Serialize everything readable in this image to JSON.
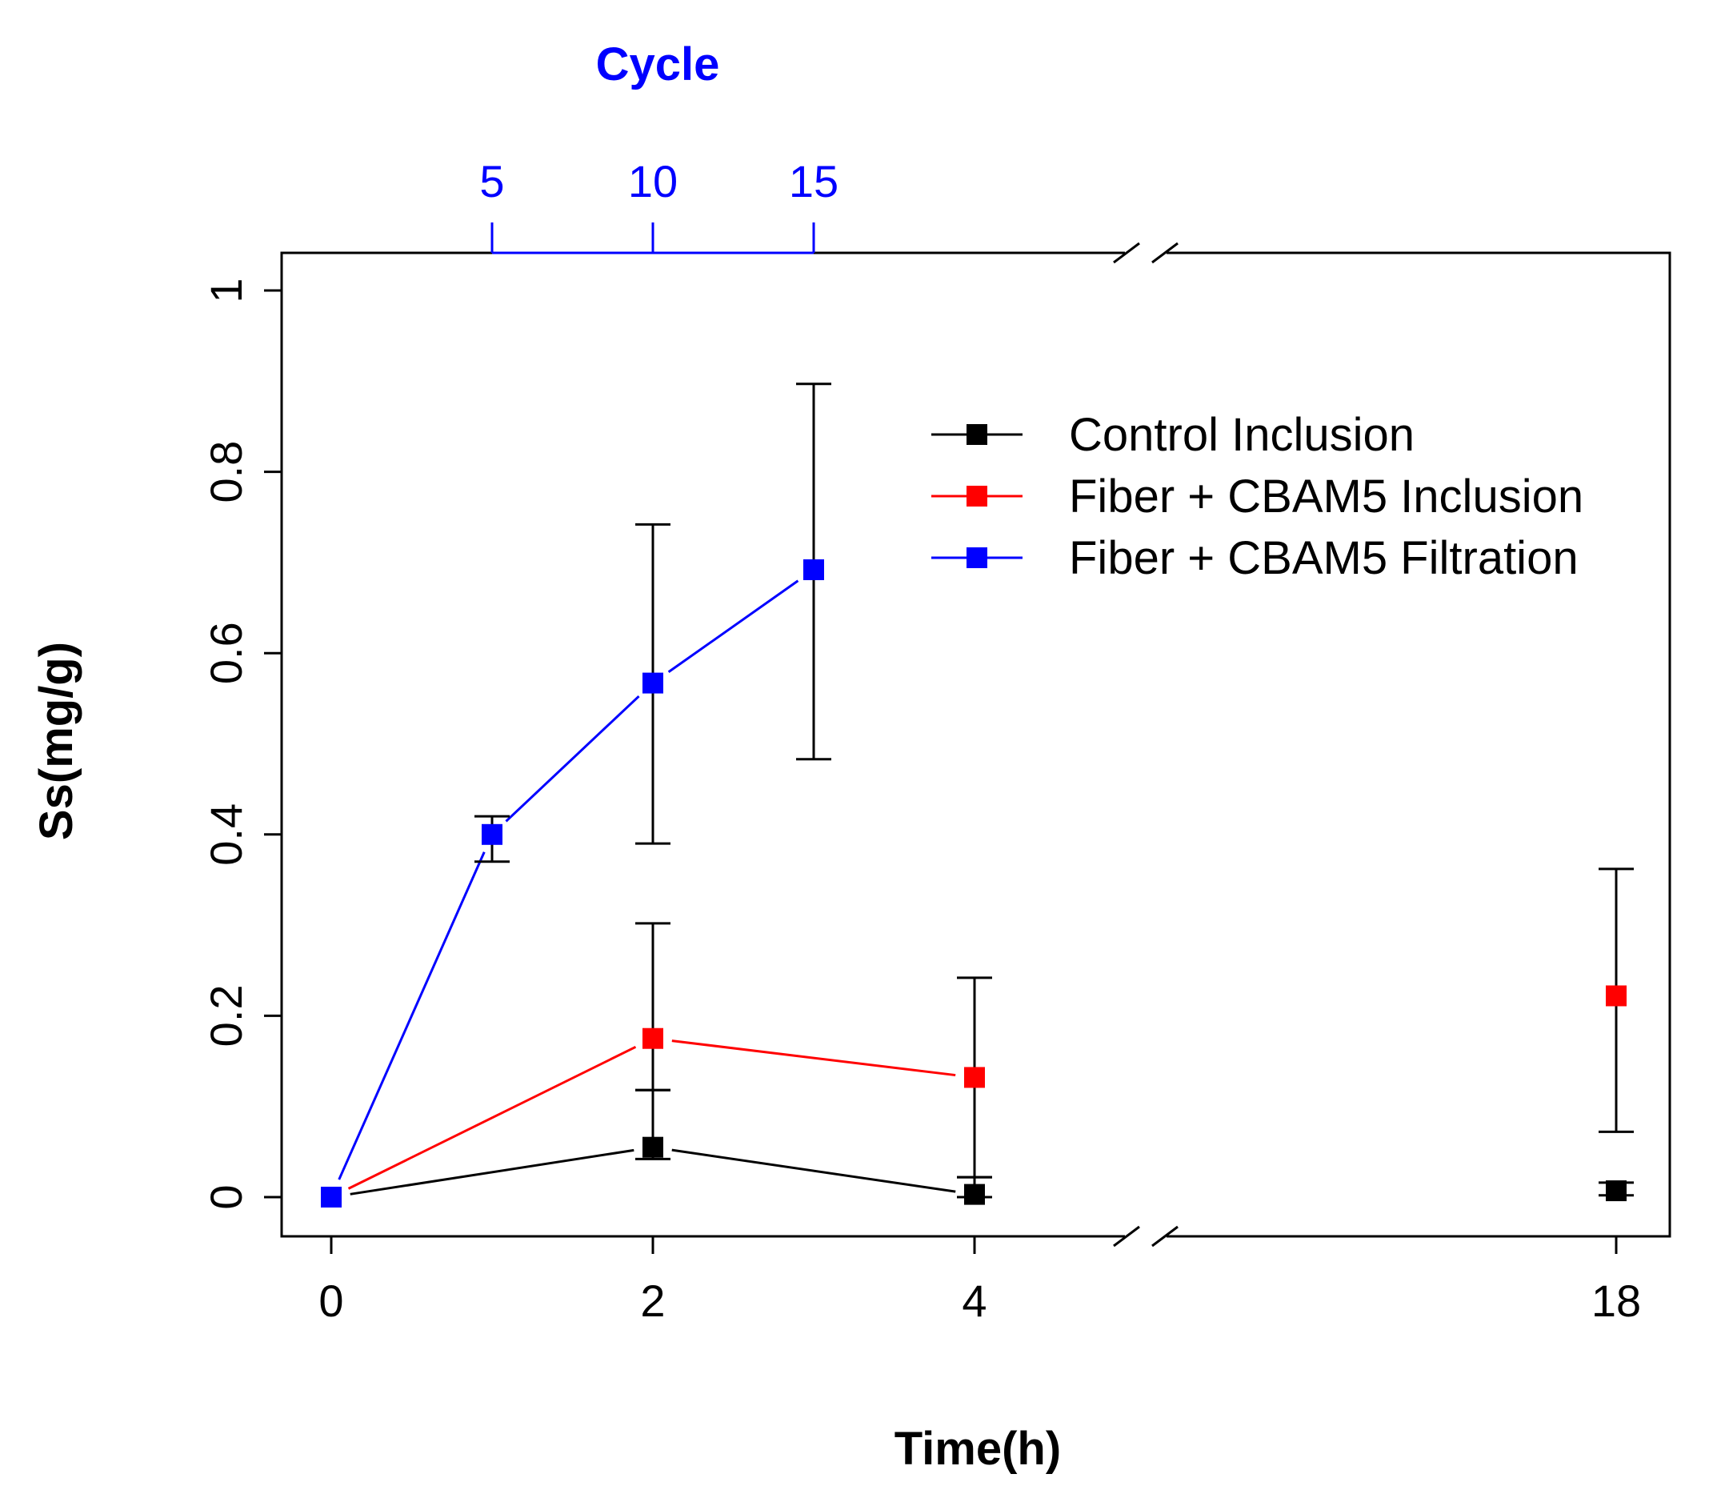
{
  "chart_data": {
    "type": "line",
    "title": "",
    "xlabel": "Time(h)",
    "ylabel": "Ss(mg/g)",
    "x_ticks": [
      0,
      2,
      4,
      18
    ],
    "x_ticks_text": [
      "0",
      "2",
      "4",
      "18"
    ],
    "y_ticks": [
      0,
      0.2,
      0.4,
      0.6,
      0.8,
      1
    ],
    "y_ticks_text": [
      "0",
      "0.2",
      "0.4",
      "0.6",
      "0.8",
      "1"
    ],
    "ylim": [
      -0.04,
      1.04
    ],
    "axis_break": "between 4 and 18",
    "top_axis": {
      "label": "Cycle",
      "color": "#0000ff",
      "ticks": [
        5,
        10,
        15
      ],
      "ticks_text": [
        "5",
        "10",
        "15"
      ],
      "time_at_tick": [
        1,
        2,
        3
      ]
    },
    "legend_position": "top-right",
    "series": [
      {
        "name": "Control Inclusion",
        "color": "#000000",
        "points": [
          {
            "x": 0,
            "y": 0,
            "lo": 0,
            "hi": 0
          },
          {
            "x": 2,
            "y": 0.055,
            "lo": 0.042,
            "hi": 0.118
          },
          {
            "x": 4,
            "y": 0.003,
            "lo": 0.0,
            "hi": 0.022
          },
          {
            "x": 18,
            "y": 0.007,
            "lo": 0.002,
            "hi": 0.016
          }
        ],
        "connected_until_x": 4
      },
      {
        "name": "Fiber + CBAM5 Inclusion",
        "color": "#ff0000",
        "points": [
          {
            "x": 0,
            "y": 0,
            "lo": 0,
            "hi": 0
          },
          {
            "x": 2,
            "y": 0.175,
            "lo": 0.118,
            "hi": 0.302
          },
          {
            "x": 4,
            "y": 0.132,
            "lo": 0.022,
            "hi": 0.242
          },
          {
            "x": 18,
            "y": 0.222,
            "lo": 0.072,
            "hi": 0.362
          }
        ],
        "connected_until_x": 4
      },
      {
        "name": "Fiber + CBAM5 Filtration",
        "color": "#0000ff",
        "points": [
          {
            "x": 0,
            "y": 0,
            "lo": 0,
            "hi": 0
          },
          {
            "x": 1,
            "y": 0.4,
            "lo": 0.37,
            "hi": 0.42
          },
          {
            "x": 2,
            "y": 0.567,
            "lo": 0.39,
            "hi": 0.742
          },
          {
            "x": 3,
            "y": 0.692,
            "lo": 0.483,
            "hi": 0.897
          }
        ],
        "connected_until_x": 3
      }
    ]
  }
}
